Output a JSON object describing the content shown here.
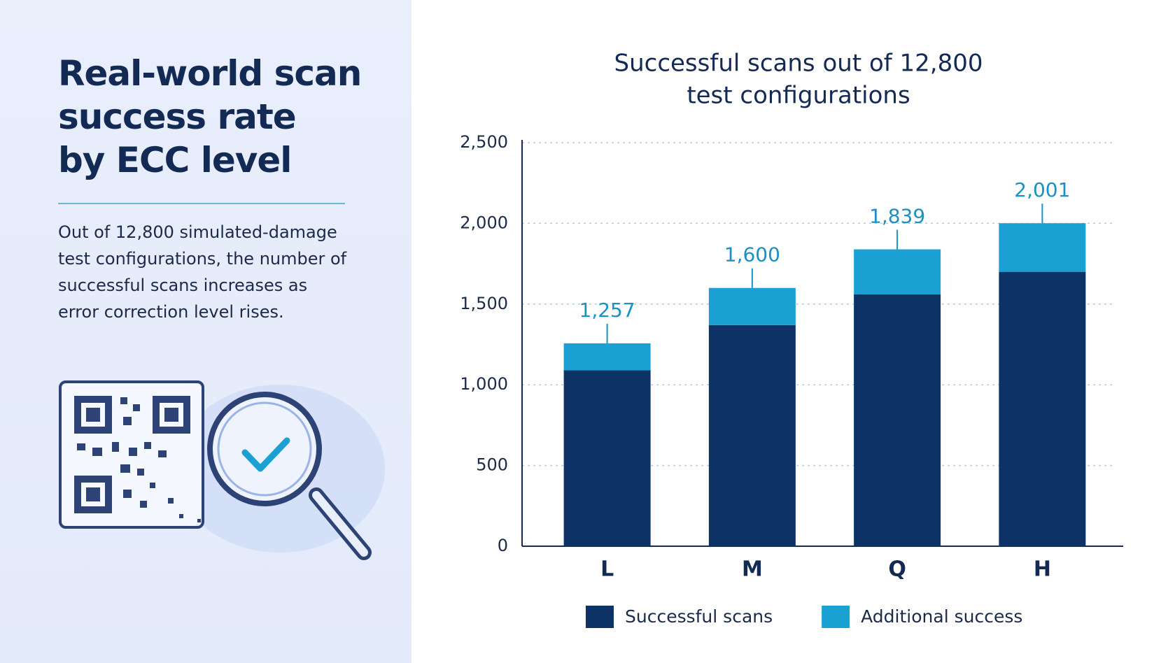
{
  "panel": {
    "title_lines": [
      "Real-world scan",
      "success rate",
      "by ECC level"
    ],
    "description": "Out of 12,800 simulated-damage test configurations, the number of successful scans increases as error correction level rises."
  },
  "chart_data": {
    "type": "stacked_bar",
    "title_lines": [
      "Successful scans out of 12,800",
      "test configurations"
    ],
    "categories": [
      "L",
      "M",
      "Q",
      "H"
    ],
    "series": [
      {
        "name": "Successful scans",
        "color": "#0d3266",
        "values": [
          1090,
          1370,
          1560,
          1700
        ]
      },
      {
        "name": "Additional success",
        "color": "#1aa0d2",
        "values": [
          167,
          230,
          279,
          301
        ]
      }
    ],
    "totals": [
      1257,
      1600,
      1839,
      2001
    ],
    "total_labels": [
      "1,257",
      "1,600",
      "1,839",
      "2,001"
    ],
    "total_label_color": "#1b90c6",
    "ylim": [
      0,
      2500
    ],
    "yticks": [
      0,
      500,
      {
        "value": 1000,
        "label": "1,000"
      },
      {
        "value": 1500,
        "label": "1,500"
      },
      {
        "value": 2000,
        "label": "2,000"
      },
      {
        "value": 2500,
        "label": "2,500"
      }
    ],
    "grid": true,
    "legend": "bottom"
  }
}
